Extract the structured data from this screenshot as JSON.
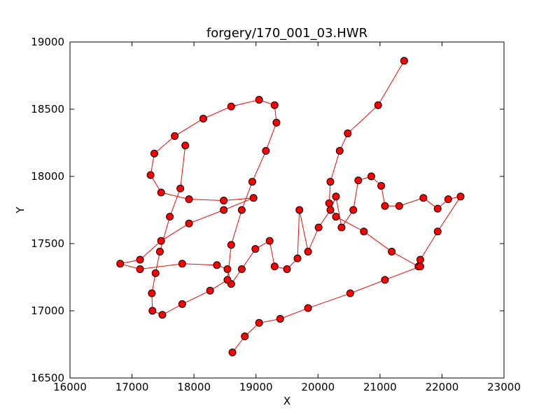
{
  "chart_data": {
    "type": "line",
    "title": "forgery/170_001_03.HWR",
    "x_label": "X",
    "y_label": "Y",
    "xlim": [
      16000,
      23000
    ],
    "ylim": [
      16500,
      19000
    ],
    "xticks": [
      16000,
      17000,
      18000,
      19000,
      20000,
      21000,
      22000,
      23000
    ],
    "yticks": [
      16500,
      17000,
      17500,
      18000,
      18500,
      19000
    ],
    "grid": false,
    "series": [
      {
        "color": "#ff0000",
        "line_color": "#ff0000",
        "edge_color": "#000000",
        "x": [
          21390,
          20970,
          20480,
          20350,
          20200,
          20180,
          20290,
          20740,
          21190,
          21620,
          21650,
          21930,
          22300,
          22100,
          21930,
          21700,
          21310,
          21080,
          21020,
          20860,
          20650,
          20570,
          20380,
          20290,
          20200,
          20010,
          19840,
          19700,
          19670,
          19500,
          19300,
          19220,
          18990,
          18770,
          18600,
          18540,
          18370,
          17810,
          17130,
          16810,
          17130,
          17470,
          17920,
          18480,
          18960,
          18480,
          17920,
          17470,
          17300,
          17360,
          17690,
          18150,
          18600,
          19050,
          19300,
          19330,
          19160,
          18940,
          18770,
          18600,
          18540,
          18260,
          17810,
          17490,
          17330,
          17320,
          17380,
          17450,
          17610,
          17780,
          17860,
          null,
          21650,
          21080,
          20520,
          19840,
          19390,
          19050,
          18820,
          18620
        ],
        "values": [
          18860,
          18530,
          18320,
          18190,
          17960,
          17800,
          17700,
          17590,
          17440,
          17330,
          17380,
          17590,
          17850,
          17830,
          17760,
          17840,
          17780,
          17780,
          17930,
          18000,
          17970,
          17750,
          17620,
          17850,
          17750,
          17620,
          17440,
          17750,
          17390,
          17310,
          17330,
          17520,
          17460,
          17310,
          17200,
          17310,
          17340,
          17350,
          17310,
          17350,
          17380,
          17520,
          17650,
          17750,
          17840,
          17820,
          17830,
          17880,
          18010,
          18170,
          18300,
          18430,
          18520,
          18570,
          18530,
          18400,
          18190,
          17960,
          17750,
          17490,
          17230,
          17150,
          17050,
          16970,
          17000,
          17130,
          17280,
          17440,
          17700,
          17910,
          18230,
          null,
          17330,
          17230,
          17130,
          17020,
          16940,
          16910,
          16810,
          16690
        ]
      }
    ]
  }
}
